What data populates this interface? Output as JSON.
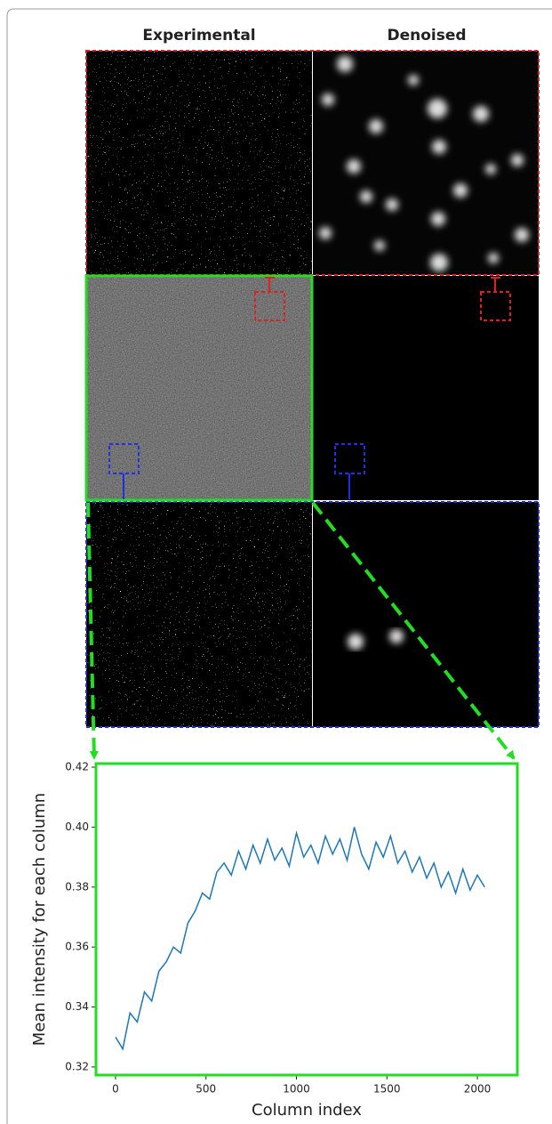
{
  "panels": {
    "left_title": "Experimental",
    "right_title": "Denoised"
  },
  "chart_data": {
    "type": "line",
    "x_label": "Column index",
    "y_label": "Mean intensity for each column",
    "x": [
      0,
      40,
      80,
      120,
      160,
      200,
      240,
      280,
      320,
      360,
      400,
      440,
      480,
      520,
      560,
      600,
      640,
      680,
      720,
      760,
      800,
      840,
      880,
      920,
      960,
      1000,
      1040,
      1080,
      1120,
      1160,
      1200,
      1240,
      1280,
      1320,
      1360,
      1400,
      1440,
      1480,
      1520,
      1560,
      1600,
      1640,
      1680,
      1720,
      1760,
      1800,
      1840,
      1880,
      1920,
      1960,
      2000,
      2040
    ],
    "values": [
      0.33,
      0.326,
      0.338,
      0.335,
      0.345,
      0.342,
      0.352,
      0.355,
      0.36,
      0.358,
      0.368,
      0.372,
      0.378,
      0.376,
      0.385,
      0.388,
      0.384,
      0.392,
      0.386,
      0.394,
      0.388,
      0.396,
      0.389,
      0.393,
      0.387,
      0.398,
      0.39,
      0.394,
      0.388,
      0.397,
      0.391,
      0.396,
      0.389,
      0.4,
      0.391,
      0.386,
      0.395,
      0.39,
      0.397,
      0.388,
      0.392,
      0.385,
      0.39,
      0.383,
      0.388,
      0.38,
      0.385,
      0.378,
      0.386,
      0.379,
      0.384,
      0.38
    ],
    "color": "#1f77b4",
    "xlim": [
      -108,
      2221
    ],
    "ylim": [
      0.3173,
      0.4212
    ],
    "xticks": [
      0,
      500,
      1000,
      1500,
      2000
    ],
    "yticks": [
      0.32,
      0.34,
      0.36,
      0.38,
      {
        "value": 0.4,
        "label": "0.40"
      },
      0.42
    ]
  }
}
